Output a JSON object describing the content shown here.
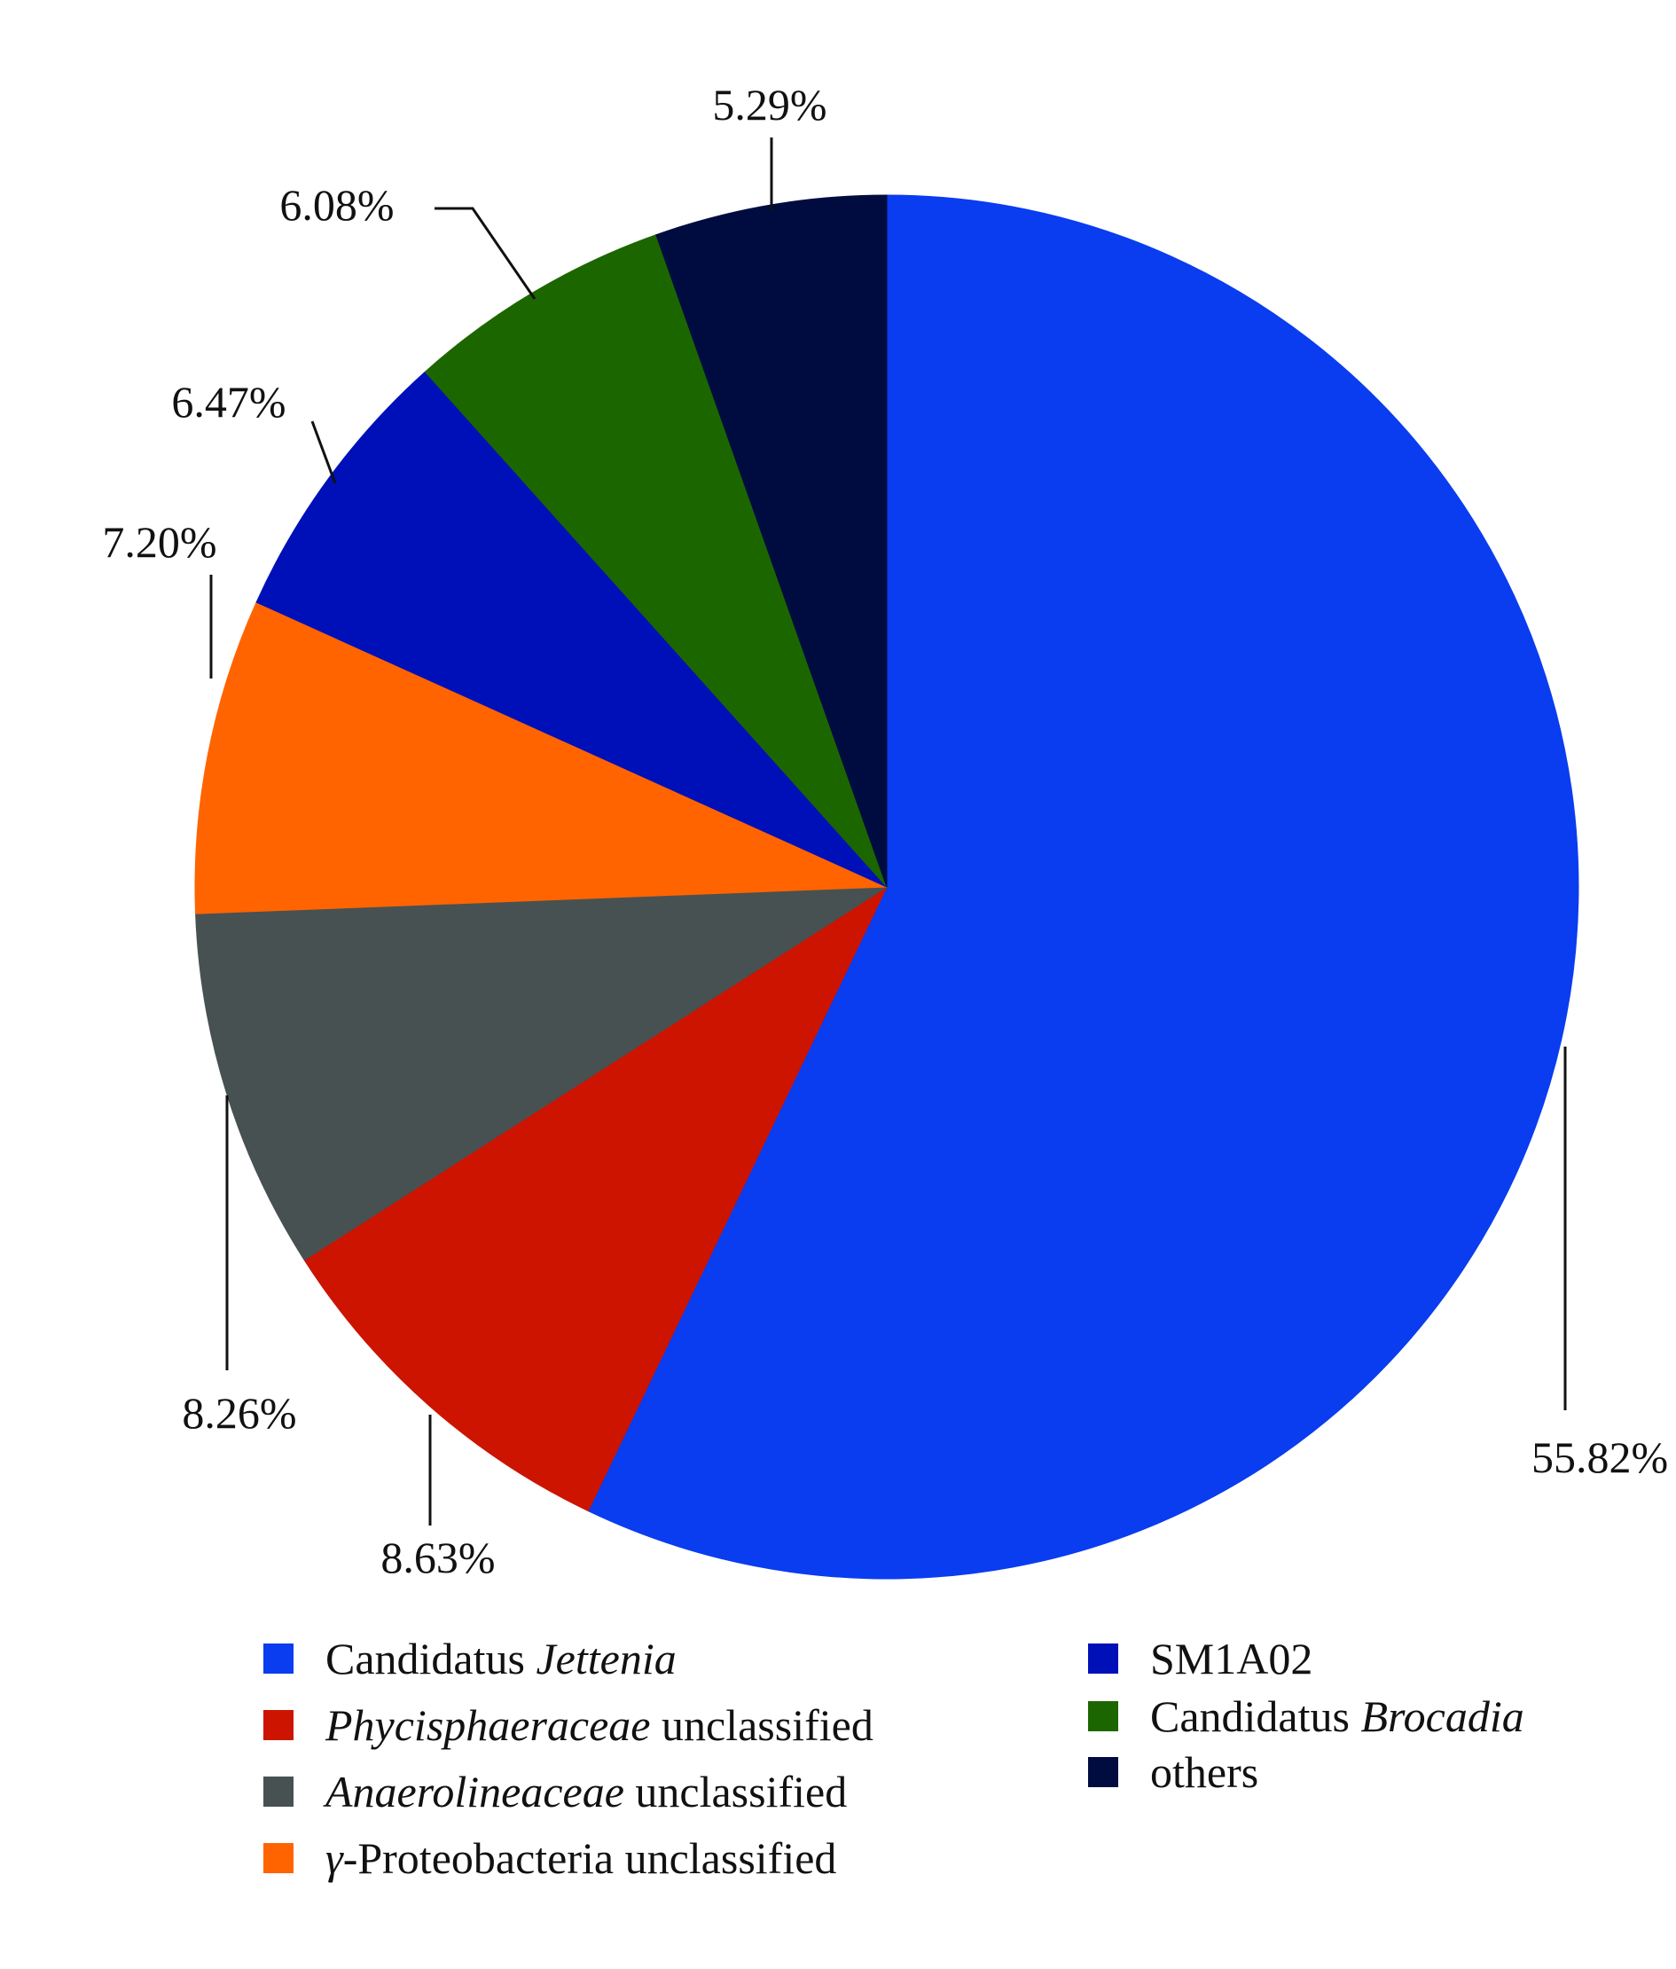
{
  "chart_data": {
    "type": "pie",
    "start_angle_deg": 0,
    "direction": "clockwise",
    "slices": [
      {
        "name": "Candidatus Jettenia",
        "value": 55.82,
        "label": "55.82%",
        "color": "#0a3cf0"
      },
      {
        "name": "Phycisphaeraceae unclassified",
        "value": 8.63,
        "label": "8.63%",
        "color": "#cc1400"
      },
      {
        "name": "Anaerolineaceae unclassified",
        "value": 8.26,
        "label": "8.26%",
        "color": "#475152"
      },
      {
        "name": "γ-Proteobacteria unclassified",
        "value": 7.2,
        "label": "7.20%",
        "color": "#ff6400"
      },
      {
        "name": "SM1A02",
        "value": 6.47,
        "label": "6.47%",
        "color": "#0010b8"
      },
      {
        "name": "Candidatus Brocadia",
        "value": 6.08,
        "label": "6.08%",
        "color": "#1c6600"
      },
      {
        "name": "others",
        "value": 5.29,
        "label": "5.29%",
        "color": "#000c40"
      }
    ],
    "legend": [
      {
        "prefix": "Candidatus ",
        "italic": "Jettenia",
        "suffix": "",
        "color": "#0a3cf0"
      },
      {
        "prefix": "",
        "italic": "Phycisphaeraceae",
        "suffix": " unclassified",
        "color": "#cc1400"
      },
      {
        "prefix": "",
        "italic": "Anaerolineaceae",
        "suffix": " unclassified",
        "color": "#475152"
      },
      {
        "prefix": "",
        "italic": "γ",
        "suffix": "-Proteobacteria unclassified",
        "color": "#ff6400"
      },
      {
        "prefix": "SM1A02",
        "italic": "",
        "suffix": "",
        "color": "#0010b8"
      },
      {
        "prefix": "Candidatus ",
        "italic": "Brocadia",
        "suffix": "",
        "color": "#1c6600"
      },
      {
        "prefix": "others",
        "italic": "",
        "suffix": "",
        "color": "#000c40"
      }
    ],
    "legend_placement": "bottom"
  }
}
